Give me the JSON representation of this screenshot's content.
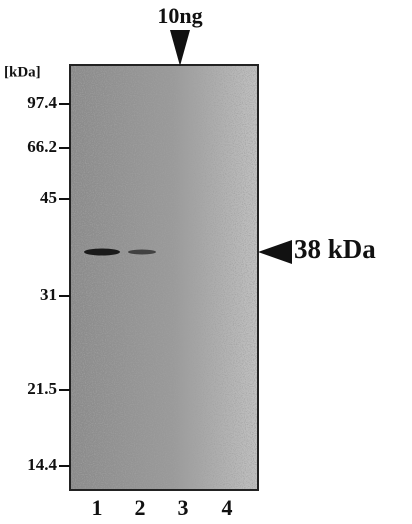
{
  "header": {
    "amount": "10ng",
    "unit": "[kDa]"
  },
  "markers": [
    "97.4",
    "66.2",
    "45",
    "31",
    "21.5",
    "14.4"
  ],
  "band_label": "38 kDa",
  "lanes": [
    "1",
    "2",
    "3",
    "4"
  ]
}
